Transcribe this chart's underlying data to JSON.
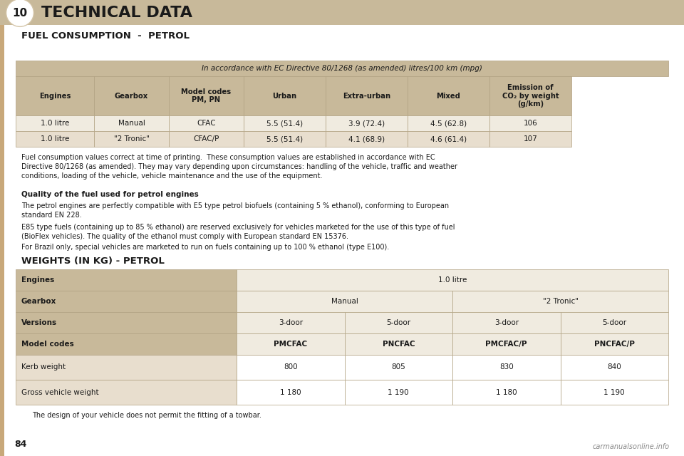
{
  "bg_color": "#f5f0e8",
  "page_bg": "#ffffff",
  "header_bg": "#c8b99a",
  "header_text_color": "#ffffff",
  "tab_header_bg": "#c8b99a",
  "tab_row_bg1": "#f0ebe0",
  "tab_row_bg2": "#e8e0d0",
  "tab_border": "#a09070",
  "title_text": "TECHNICAL DATA",
  "section1_title": "FUEL CONSUMPTION  -  PETROL",
  "section2_title": "WEIGHTS (IN KG) - PETROL",
  "table1_header_row": "In accordance with EC Directive 80/1268 (as amended) litres/100 km (mpg)",
  "table1_col_headers": [
    "Engines",
    "Gearbox",
    "Model codes\nPM, PN",
    "Urban",
    "Extra-urban",
    "Mixed",
    "Emission of\nCO₂ by weight\n(g/km)"
  ],
  "table1_rows": [
    [
      "1.0 litre",
      "Manual",
      "CFAC",
      "5.5 (51.4)",
      "3.9 (72.4)",
      "4.5 (62.8)",
      "106"
    ],
    [
      "1.0 litre",
      "\"2 Tronic\"",
      "CFAC/P",
      "5.5 (51.4)",
      "4.1 (68.9)",
      "4.6 (61.4)",
      "107"
    ]
  ],
  "para1": "Fuel consumption values correct at time of printing.  These consumption values are established in accordance with EC\nDirective 80/1268 (as amended). They may vary depending upon circumstances: handling of the vehicle, traffic and weather\nconditions, loading of the vehicle, vehicle maintenance and the use of the equipment.",
  "quality_title": "Quality of the fuel used for petrol engines",
  "quality_para1": "The petrol engines are perfectly compatible with E5 type petrol biofuels (containing 5 % ethanol), conforming to European\nstandard EN 228.",
  "quality_para2": "E85 type fuels (containing up to 85 % ethanol) are reserved exclusively for vehicles marketed for the use of this type of fuel\n(BioFlex vehicles). The quality of the ethanol must comply with European standard EN 15376.",
  "quality_para3": "For Brazil only, special vehicles are marketed to run on fuels containing up to 100 % ethanol (type E100).",
  "table2_rows": [
    [
      "Engines",
      "1.0 litre",
      "",
      "",
      ""
    ],
    [
      "Gearbox",
      "Manual",
      "",
      "\"2 Tronic\"",
      ""
    ],
    [
      "Versions",
      "3-door",
      "5-door",
      "3-door",
      "5-door"
    ],
    [
      "Model codes",
      "PMCFAC",
      "PNCFAC",
      "PMCFAC/P",
      "PNCFAC/P"
    ],
    [
      "Kerb weight",
      "800",
      "805",
      "830",
      "840"
    ],
    [
      "Gross vehicle weight",
      "1 180",
      "1 190",
      "1 180",
      "1 190"
    ]
  ],
  "footer_note": "The design of your vehicle does not permit the fitting of a towbar.",
  "page_number": "84",
  "watermark": "carmanualsonline.info",
  "accent_color": "#8B7355",
  "dark_tan": "#c8a87a"
}
